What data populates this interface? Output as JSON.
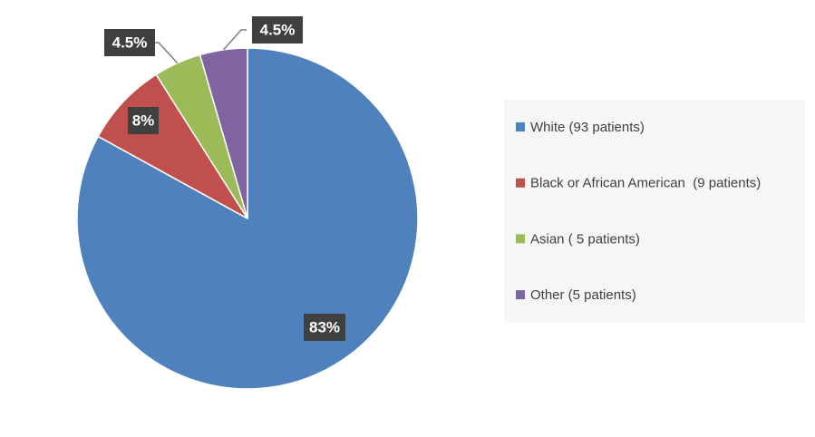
{
  "chart_data": {
    "type": "pie",
    "categories": [
      "White (93 patients)",
      "Black or African American  (9 patients)",
      "Asian ( 5 patients)",
      "Other (5 patients)"
    ],
    "values": [
      83,
      8,
      4.5,
      4.5
    ],
    "value_labels": [
      "83%",
      "8%",
      "4.5%",
      "4.5%"
    ],
    "colors": [
      "#4f81bd",
      "#c0504d",
      "#9bbb59",
      "#8064a2"
    ],
    "legend": "right"
  }
}
